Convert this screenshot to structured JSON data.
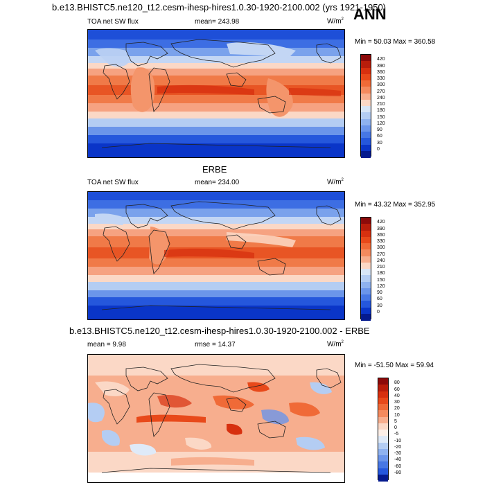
{
  "season": "ANN",
  "panel1": {
    "title": "b.e13.BHISTC5.ne120_t12.cesm-ihesp-hires1.0.30-1920-2100.002 (yrs 1921-1950)",
    "left": "TOA net SW flux",
    "mid": "mean= 243.98",
    "units": "W/m",
    "units_sup": "2",
    "minmax": "Min =  50.03 Max = 360.58",
    "ticks": [
      "420",
      "390",
      "360",
      "330",
      "300",
      "270",
      "240",
      "210",
      "180",
      "150",
      "120",
      "90",
      "60",
      "30",
      "0"
    ]
  },
  "panel2": {
    "title": "ERBE",
    "left": "TOA net SW flux",
    "mid": "mean= 234.00",
    "units": "W/m",
    "units_sup": "2",
    "minmax": "Min =  43.32 Max = 352.95",
    "ticks": [
      "420",
      "390",
      "360",
      "330",
      "300",
      "270",
      "240",
      "210",
      "180",
      "150",
      "120",
      "90",
      "60",
      "30",
      "0"
    ]
  },
  "panel3": {
    "title": "b.e13.BHISTC5.ne120_t12.cesm-ihesp-hires1.0.30-1920-2100.002 - ERBE",
    "left": "mean =   9.98",
    "mid": "rmse =  14.37",
    "units": "W/m",
    "units_sup": "2",
    "minmax": "Min = -51.50 Max =  59.94",
    "ticks": [
      "80",
      "60",
      "40",
      "30",
      "20",
      "10",
      "5",
      "0",
      "-5",
      "-10",
      "-20",
      "-30",
      "-40",
      "-60",
      "-80"
    ]
  },
  "colors": {
    "flux_scale": [
      "#8c0a0a",
      "#b81d0b",
      "#d7300f",
      "#e8491a",
      "#f06a37",
      "#f48a5e",
      "#f7ae8e",
      "#fbd8c6",
      "#d8e6f7",
      "#b4cdf3",
      "#8fb2ef",
      "#6b95ea",
      "#4777e4",
      "#2557dc",
      "#0a35c8",
      "#051a8e"
    ],
    "diff_scale": [
      "#8c0a0a",
      "#b81d0b",
      "#d7300f",
      "#e8491a",
      "#f06a37",
      "#f48a5e",
      "#f7ae8e",
      "#fbd8c6",
      "#fdf0e8",
      "#dfeaf8",
      "#b4cdf3",
      "#8fb2ef",
      "#6b95ea",
      "#4777e4",
      "#2557dc",
      "#051a8e"
    ]
  }
}
